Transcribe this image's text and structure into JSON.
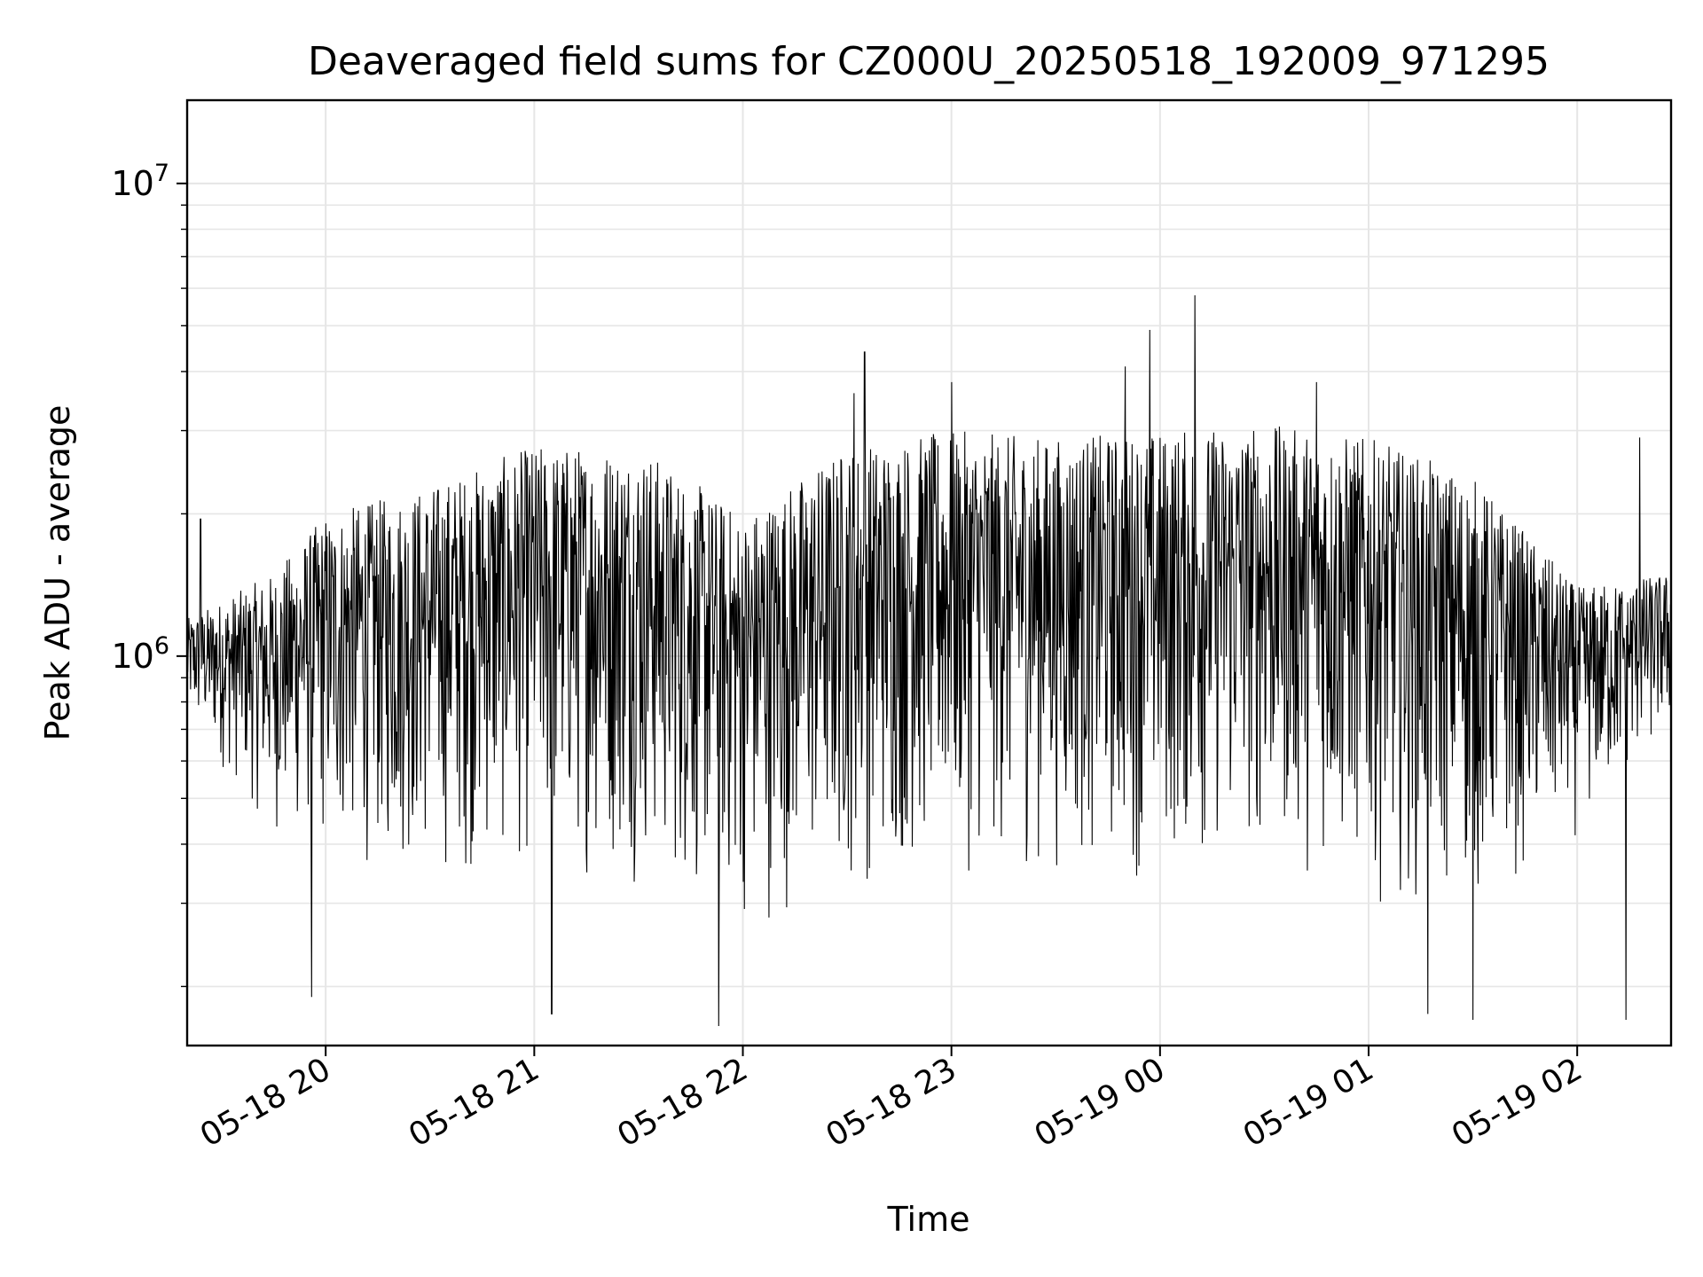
{
  "chart_data": {
    "type": "line",
    "title": "Deaveraged field sums for CZ000U_20250518_192009_971295",
    "xlabel": "Time",
    "ylabel": "Peak ADU - average",
    "x_scale": "time",
    "y_scale": "log",
    "xlim": [
      "2025-05-18T19:20:09",
      "2025-05-19T02:27:00"
    ],
    "ylim": [
      150000,
      15000000
    ],
    "x_ticks": [
      "05-18 20",
      "05-18 21",
      "05-18 22",
      "05-18 23",
      "05-19 00",
      "05-19 01",
      "05-19 02"
    ],
    "y_ticks": [
      {
        "base": "10",
        "exp": "6",
        "value": 1000000
      },
      {
        "base": "10",
        "exp": "7",
        "value": 10000000
      }
    ],
    "grid": true,
    "legend": "none",
    "line_color": "#000000",
    "series": [
      {
        "upper_envelope": {
          "x": [
            "2025-05-18T19:20:09",
            "2025-05-18T19:45:00",
            "2025-05-18T20:00:00",
            "2025-05-18T20:30:00",
            "2025-05-18T21:00:00",
            "2025-05-18T21:30:00",
            "2025-05-18T22:00:00",
            "2025-05-18T22:30:00",
            "2025-05-18T23:00:00",
            "2025-05-18T23:30:00",
            "2025-05-19T00:00:00",
            "2025-05-19T00:30:00",
            "2025-05-19T01:00:00",
            "2025-05-19T01:30:00",
            "2025-05-19T02:00:00",
            "2025-05-19T02:27:00"
          ],
          "y": [
            1200000,
            1500000,
            2000000,
            2300000,
            2800000,
            2800000,
            2000000,
            2800000,
            3000000,
            2900000,
            3000000,
            3100000,
            2900000,
            2400000,
            1400000,
            1500000
          ]
        },
        "lower_envelope": {
          "x": [
            "2025-05-18T19:20:09",
            "2025-05-18T19:45:00",
            "2025-05-18T20:00:00",
            "2025-05-18T20:30:00",
            "2025-05-18T21:00:00",
            "2025-05-18T21:30:00",
            "2025-05-18T22:00:00",
            "2025-05-18T22:30:00",
            "2025-05-18T23:00:00",
            "2025-05-18T23:30:00",
            "2025-05-19T00:00:00",
            "2025-05-19T00:30:00",
            "2025-05-19T01:00:00",
            "2025-05-19T01:30:00",
            "2025-05-19T02:00:00",
            "2025-05-19T02:27:00"
          ],
          "y": [
            700000,
            400000,
            350000,
            320000,
            330000,
            320000,
            250000,
            300000,
            330000,
            330000,
            320000,
            350000,
            300000,
            270000,
            400000,
            650000
          ]
        },
        "spikes": [
          {
            "x": "2025-05-18T19:24:00",
            "y": 1950000
          },
          {
            "x": "2025-05-18T19:56:00",
            "y": 190000
          },
          {
            "x": "2025-05-18T21:05:00",
            "y": 175000
          },
          {
            "x": "2025-05-18T21:53:00",
            "y": 165000
          },
          {
            "x": "2025-05-18T22:32:00",
            "y": 3600000
          },
          {
            "x": "2025-05-18T22:35:00",
            "y": 4400000
          },
          {
            "x": "2025-05-18T23:00:00",
            "y": 3800000
          },
          {
            "x": "2025-05-18T23:50:00",
            "y": 4100000
          },
          {
            "x": "2025-05-18T23:57:00",
            "y": 4900000
          },
          {
            "x": "2025-05-19T00:10:00",
            "y": 5800000
          },
          {
            "x": "2025-05-19T00:45:00",
            "y": 3800000
          },
          {
            "x": "2025-05-19T01:17:00",
            "y": 175000
          },
          {
            "x": "2025-05-19T01:30:00",
            "y": 170000
          },
          {
            "x": "2025-05-19T02:14:00",
            "y": 170000
          },
          {
            "x": "2025-05-19T02:18:00",
            "y": 2900000
          }
        ]
      }
    ]
  }
}
